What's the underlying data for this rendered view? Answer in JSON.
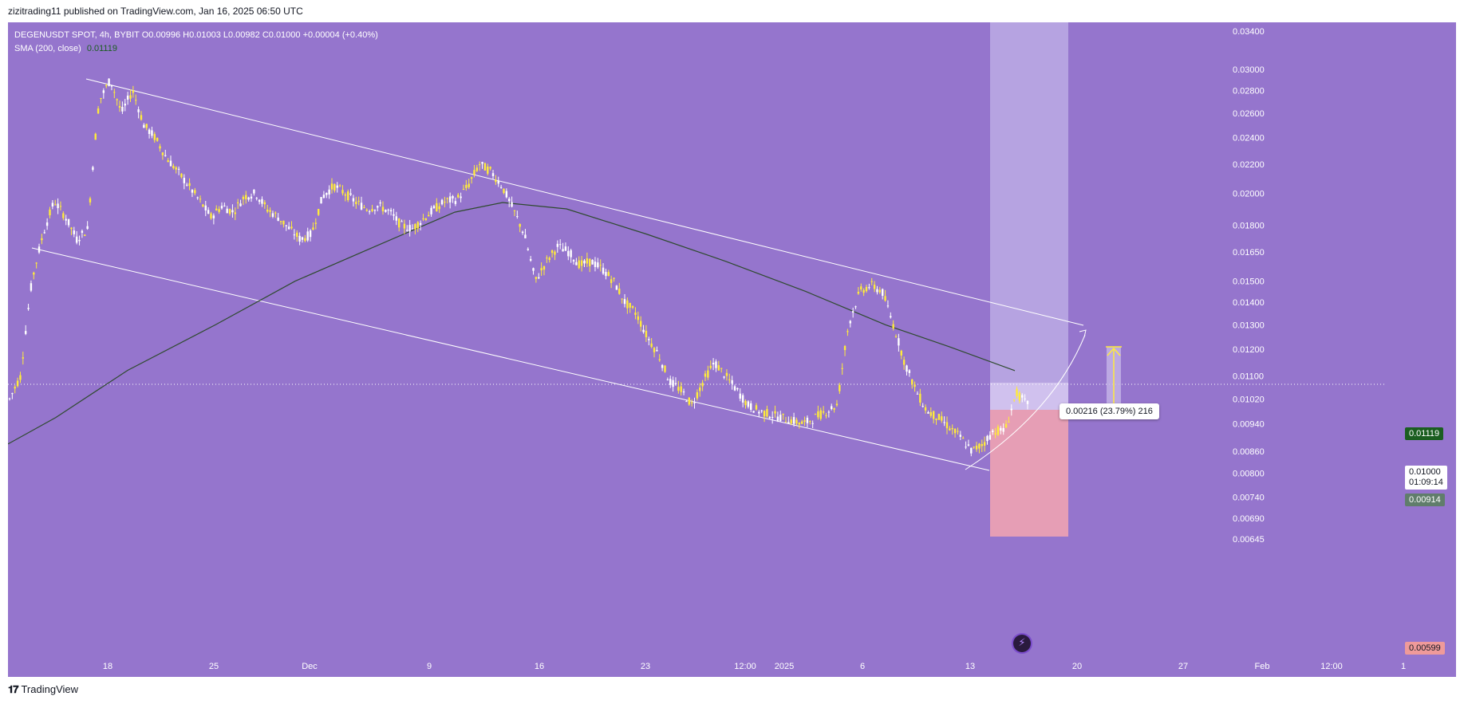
{
  "header": {
    "published_text": "zizitrading11 published on TradingView.com, Jan 16, 2025 06:50 UTC"
  },
  "legend": {
    "symbol_line": "DEGENUSDT SPOT, 4h, BYBIT  O0.00996  H0.01003  L0.00982  C0.01000  +0.00004 (+0.40%)",
    "sma_label": "SMA (200, close)",
    "sma_value": "0.01119"
  },
  "badges": {
    "sma_price": "0.01119",
    "last_price": "0.01000",
    "countdown": "01:09:14",
    "entry_price": "0.00914",
    "stop_price": "0.00599"
  },
  "measure": {
    "label": "0.00216 (23.79%) 216"
  },
  "footer": {
    "brand": "TradingView"
  },
  "colors": {
    "background": "#9575cd",
    "candle": "#ffeb3b",
    "sma": "#2e4a2e",
    "channel": "#ffffff",
    "target_zone": "#c5b6e9",
    "stop_zone": "#f7a1a8",
    "sma_badge": "#1b5e20",
    "entry_badge": "#607d6b",
    "stop_badge": "#ef9a9a"
  },
  "chart_data": {
    "type": "candlestick",
    "symbol": "DEGENUSDT",
    "timeframe": "4h",
    "exchange": "BYBIT",
    "y_scale": "log",
    "ylim": [
      0.00599,
      0.0352
    ],
    "y_ticks": [
      "0.03400",
      "0.03000",
      "0.02800",
      "0.02600",
      "0.02400",
      "0.02200",
      "0.02000",
      "0.01800",
      "0.01650",
      "0.01500",
      "0.01400",
      "0.01300",
      "0.01200",
      "0.01100",
      "0.01020",
      "0.00940",
      "0.00860",
      "0.00800",
      "0.00740",
      "0.00690",
      "0.00645"
    ],
    "x_ticks": [
      "18",
      "25",
      "Dec",
      "9",
      "16",
      "23",
      "12:00",
      "2025",
      "6",
      "13",
      "20",
      "27",
      "Feb",
      "12:00",
      "1"
    ],
    "price_path": [
      [
        0.0102,
        0.011
      ],
      [
        0.015,
        0.0175
      ],
      [
        0.0195,
        0.0185
      ],
      [
        0.0172,
        0.0178
      ],
      [
        0.027,
        0.029
      ],
      [
        0.026,
        0.028
      ],
      [
        0.025,
        0.024
      ],
      [
        0.0225,
        0.0215
      ],
      [
        0.0205,
        0.0195
      ],
      [
        0.0185,
        0.0192
      ],
      [
        0.0188,
        0.0198
      ],
      [
        0.02,
        0.019
      ],
      [
        0.0185,
        0.0178
      ],
      [
        0.0172,
        0.0175
      ],
      [
        0.0198,
        0.0205
      ],
      [
        0.02,
        0.0194
      ],
      [
        0.019,
        0.0192
      ],
      [
        0.0188,
        0.018
      ],
      [
        0.0178,
        0.0184
      ],
      [
        0.019,
        0.0195
      ],
      [
        0.0196,
        0.0205
      ],
      [
        0.022,
        0.0215
      ],
      [
        0.0205,
        0.019
      ],
      [
        0.0175,
        0.015
      ],
      [
        0.016,
        0.0168
      ],
      [
        0.0165,
        0.0158
      ],
      [
        0.016,
        0.0156
      ],
      [
        0.015,
        0.014
      ],
      [
        0.0135,
        0.0125
      ],
      [
        0.0118,
        0.0108
      ],
      [
        0.0105,
        0.01
      ],
      [
        0.0108,
        0.0115
      ],
      [
        0.011,
        0.0105
      ],
      [
        0.01,
        0.0098
      ],
      [
        0.0097,
        0.0096
      ],
      [
        0.0095,
        0.0094
      ],
      [
        0.0096,
        0.0098
      ],
      [
        0.01,
        0.013
      ],
      [
        0.0145,
        0.0148
      ],
      [
        0.0145,
        0.013
      ],
      [
        0.0115,
        0.0105
      ],
      [
        0.0098,
        0.0096
      ],
      [
        0.0093,
        0.009
      ],
      [
        0.0086,
        0.0088
      ],
      [
        0.0092,
        0.0092
      ],
      [
        0.0104,
        0.01
      ]
    ],
    "sma_200_last": 0.01119,
    "last_price": 0.01,
    "position": {
      "entry": 0.00914,
      "target": 0.0352,
      "stop": 0.00599
    },
    "measure": {
      "change": 0.00216,
      "percent": 23.79,
      "ticks": 216
    },
    "annotations": [
      "descending channel",
      "projection arrow",
      "measure arrow"
    ]
  }
}
